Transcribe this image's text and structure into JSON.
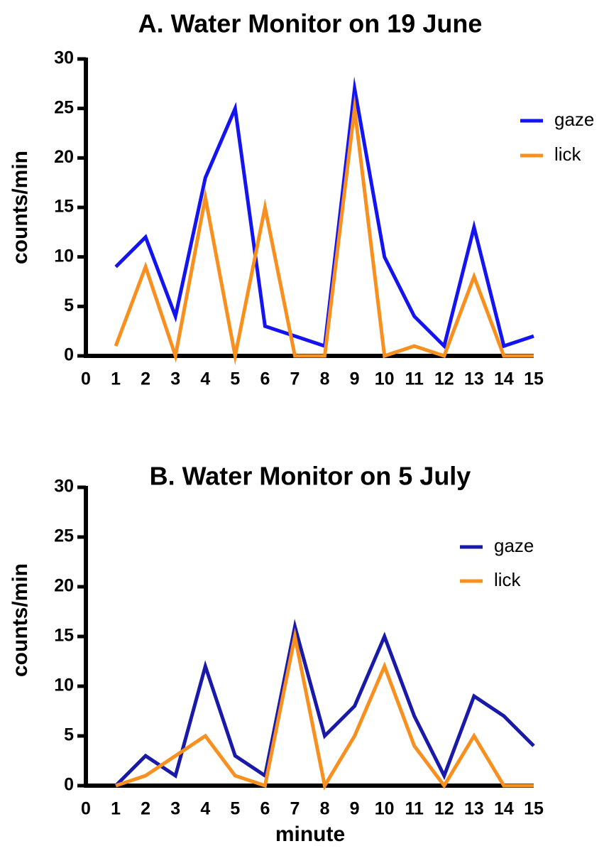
{
  "chart_data": [
    {
      "type": "line",
      "title": "A.  Water Monitor on 19 June",
      "xlabel": "",
      "ylabel": "counts/min",
      "xlim": [
        0,
        15
      ],
      "ylim": [
        0,
        30
      ],
      "xticks": [
        0,
        1,
        2,
        3,
        4,
        5,
        6,
        7,
        8,
        9,
        10,
        11,
        12,
        13,
        14,
        15
      ],
      "yticks": [
        0,
        5,
        10,
        15,
        20,
        25,
        30
      ],
      "legend_position": "top-right",
      "x": [
        1,
        2,
        3,
        4,
        5,
        6,
        7,
        8,
        9,
        10,
        11,
        12,
        13,
        14,
        15
      ],
      "series": [
        {
          "name": "gaze",
          "color": "#1414f0",
          "values": [
            9,
            12,
            4,
            18,
            25,
            3,
            2,
            1,
            27,
            10,
            4,
            1,
            13,
            1,
            2
          ]
        },
        {
          "name": "lick",
          "color": "#f7901e",
          "values": [
            1,
            9,
            0,
            16,
            0,
            15,
            0,
            0,
            25,
            0,
            1,
            0,
            8,
            0,
            0
          ]
        }
      ]
    },
    {
      "type": "line",
      "title": "B.  Water Monitor on 5 July",
      "xlabel": "minute",
      "ylabel": "counts/min",
      "xlim": [
        0,
        15
      ],
      "ylim": [
        0,
        30
      ],
      "xticks": [
        0,
        1,
        2,
        3,
        4,
        5,
        6,
        7,
        8,
        9,
        10,
        11,
        12,
        13,
        14,
        15
      ],
      "yticks": [
        0,
        5,
        10,
        15,
        20,
        25,
        30
      ],
      "legend_position": "top-right",
      "x": [
        1,
        2,
        3,
        4,
        5,
        6,
        7,
        8,
        9,
        10,
        11,
        12,
        13,
        14,
        15
      ],
      "series": [
        {
          "name": "gaze",
          "color": "#1a1aa8",
          "values": [
            0,
            3,
            1,
            12,
            3,
            1,
            16,
            5,
            8,
            15,
            7,
            1,
            9,
            7,
            4
          ]
        },
        {
          "name": "lick",
          "color": "#f7901e",
          "values": [
            0,
            1,
            3,
            5,
            1,
            0,
            15,
            0,
            5,
            12,
            4,
            0,
            5,
            0,
            0
          ]
        }
      ]
    }
  ]
}
